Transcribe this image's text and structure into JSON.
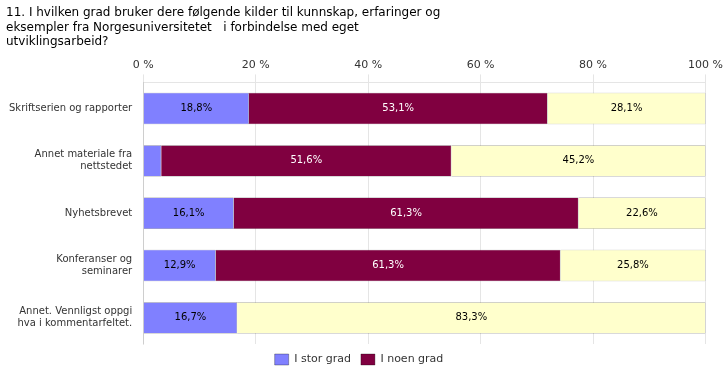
{
  "chart_data": {
    "type": "bar",
    "orientation": "horizontal",
    "stacked": true,
    "title": "11. I hvilken grad bruker dere følgende kilder til kunnskap, erfaringer og\neksempler fra Norgesuniversitetet   i forbindelse med eget\nutviklingsarbeid?",
    "categories": [
      "Skriftserien og rapporter",
      "Annet materiale fra\nnettstedet",
      "Nyhetsbrevet",
      "Konferanser og\nseminarer",
      "Annet. Vennligst oppgi\nhva i kommentarfeltet."
    ],
    "series": [
      {
        "name": "I stor grad",
        "color": "#8080ff",
        "values": [
          18.8,
          3.2,
          16.1,
          12.9,
          16.7
        ],
        "value_labels": [
          "18,8%",
          null,
          "16,1%",
          "12,9%",
          "16,7%"
        ]
      },
      {
        "name": "I noen grad",
        "color": "#800040",
        "values": [
          53.1,
          51.6,
          61.3,
          61.3,
          0.0
        ],
        "value_labels": [
          "53,1%",
          "51,6%",
          "61,3%",
          "61,3%",
          null
        ]
      },
      {
        "color": "#ffffcc",
        "values": [
          28.1,
          45.2,
          22.6,
          25.8,
          83.3
        ],
        "value_labels": [
          "28,1%",
          "45,2%",
          "22,6%",
          "25,8%",
          "83,3%"
        ]
      }
    ],
    "xlim": [
      0,
      100
    ],
    "xticks": [
      {
        "value": 0,
        "label": "0 %"
      },
      {
        "value": 20,
        "label": "20 %"
      },
      {
        "value": 40,
        "label": "40 %"
      },
      {
        "value": 60,
        "label": "60 %"
      },
      {
        "value": 80,
        "label": "80 %"
      },
      {
        "value": 100,
        "label": "100 %"
      }
    ],
    "data_labels": true,
    "grid": true,
    "legend": "bottom"
  }
}
